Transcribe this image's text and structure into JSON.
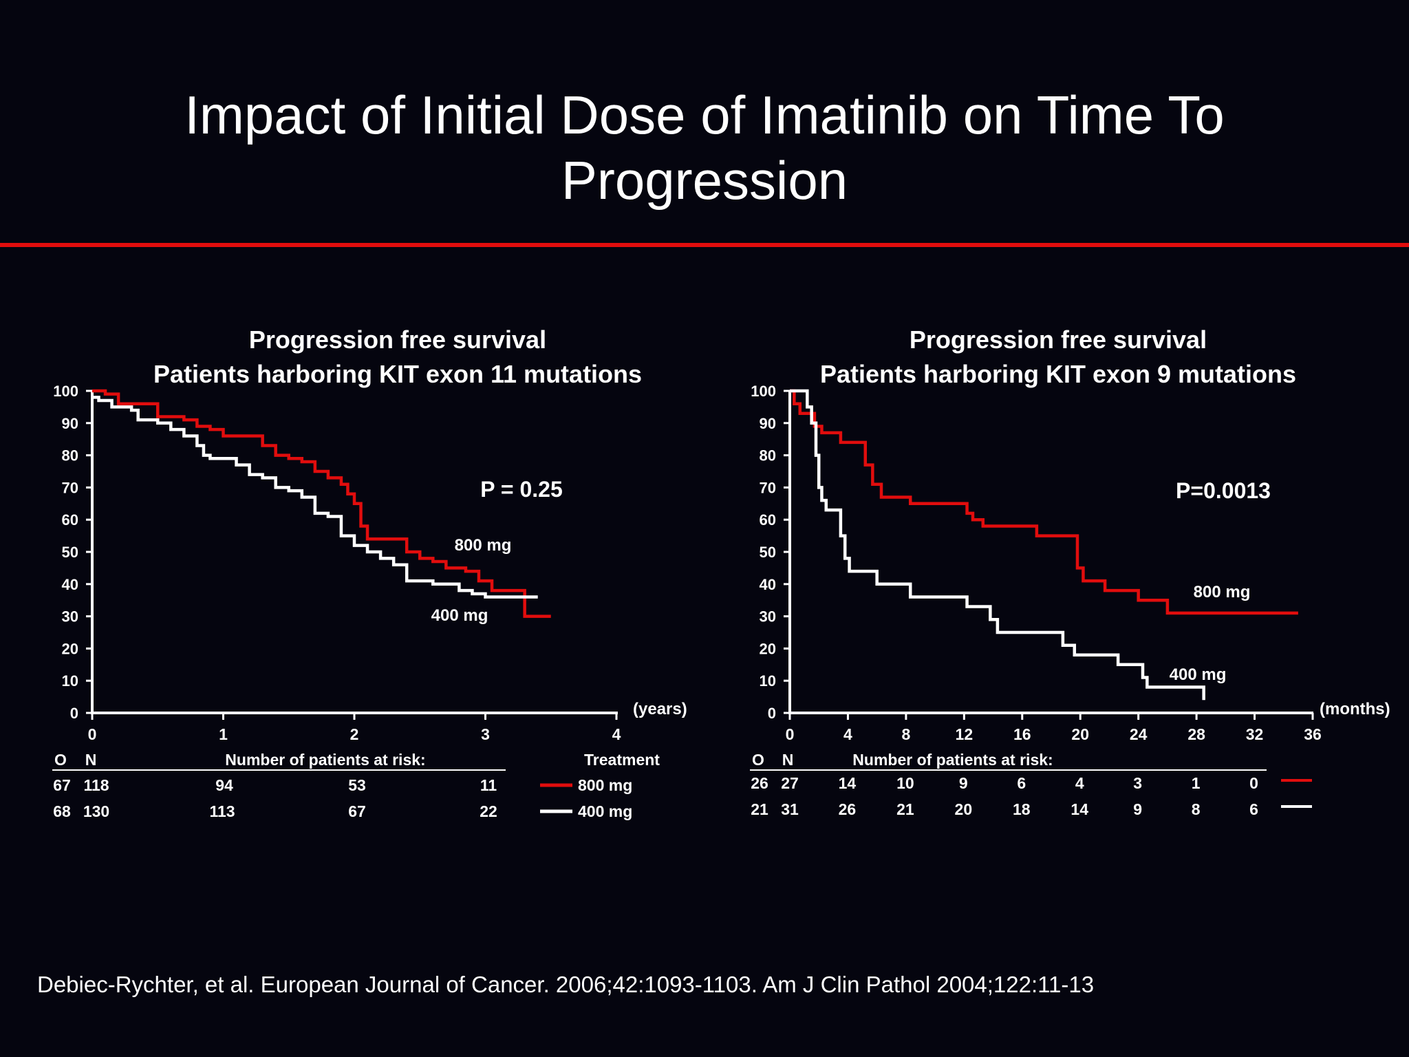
{
  "slide": {
    "title_line1": "Impact of Initial Dose of Imatinib on Time To",
    "title_line2": "Progression",
    "citation": "Debiec-Rychter, et al. European Journal of Cancer. 2006;42:1093-1103. Am J Clin Pathol 2004;122:11-13"
  },
  "colors": {
    "background": "#05050f",
    "accent": "#e10d0d",
    "series_800": "#e10d0d",
    "series_400": "#ffffff",
    "text": "#ffffff"
  },
  "chart_data": [
    {
      "type": "line",
      "subtype": "kaplan-meier step",
      "title": "Progression free survival",
      "subtitle": "Patients harboring KIT exon 11 mutations",
      "xunit": "(years)",
      "xlim": [
        0,
        4
      ],
      "xticks": [
        "0",
        "1",
        "2",
        "3",
        "4"
      ],
      "ylim": [
        0,
        100
      ],
      "yticks": [
        "0",
        "10",
        "20",
        "30",
        "40",
        "50",
        "60",
        "70",
        "80",
        "90",
        "100"
      ],
      "pvalue": "P = 0.25",
      "series": [
        {
          "name": "800 mg",
          "label": "800 mg",
          "color": "#e10d0d",
          "x": [
            0,
            0.1,
            0.2,
            0.45,
            0.5,
            0.7,
            0.8,
            0.9,
            1.0,
            1.2,
            1.3,
            1.4,
            1.5,
            1.6,
            1.7,
            1.8,
            1.9,
            1.95,
            2.0,
            2.05,
            2.1,
            2.3,
            2.4,
            2.5,
            2.6,
            2.7,
            2.85,
            2.95,
            3.05,
            3.3,
            3.5
          ],
          "y": [
            100,
            99,
            96,
            96,
            92,
            91,
            89,
            88,
            86,
            86,
            83,
            80,
            79,
            78,
            75,
            73,
            71,
            68,
            65,
            58,
            54,
            54,
            50,
            48,
            47,
            45,
            44,
            41,
            38,
            30,
            30
          ]
        },
        {
          "name": "400 mg",
          "label": "400 mg",
          "color": "#ffffff",
          "x": [
            0,
            0.05,
            0.15,
            0.3,
            0.35,
            0.5,
            0.6,
            0.7,
            0.8,
            0.85,
            0.9,
            1.0,
            1.1,
            1.2,
            1.3,
            1.4,
            1.5,
            1.6,
            1.7,
            1.8,
            1.9,
            2.0,
            2.1,
            2.2,
            2.3,
            2.4,
            2.6,
            2.8,
            2.9,
            3.0,
            3.4
          ],
          "y": [
            98,
            97,
            95,
            94,
            91,
            90,
            88,
            86,
            83,
            80,
            79,
            79,
            77,
            74,
            73,
            70,
            69,
            67,
            62,
            61,
            55,
            52,
            50,
            48,
            46,
            41,
            40,
            38,
            37,
            36,
            36
          ]
        }
      ],
      "risk_table": {
        "header_o": "O",
        "header_n": "N",
        "header_label": "Number of patients at risk:",
        "treatment_header": "Treatment",
        "rows": [
          {
            "o": "67",
            "n": "118",
            "values": [
              "94",
              "53",
              "11"
            ],
            "treatment": "800 mg"
          },
          {
            "o": "68",
            "n": "130",
            "values": [
              "113",
              "67",
              "22"
            ],
            "treatment": "400 mg"
          }
        ]
      }
    },
    {
      "type": "line",
      "subtype": "kaplan-meier step",
      "title": "Progression free survival",
      "subtitle": "Patients harboring KIT exon 9 mutations",
      "xunit": "(months)",
      "xlim": [
        0,
        36
      ],
      "xticks": [
        "0",
        "4",
        "8",
        "12",
        "16",
        "20",
        "24",
        "28",
        "32",
        "36"
      ],
      "ylim": [
        0,
        100
      ],
      "yticks": [
        "0",
        "10",
        "20",
        "30",
        "40",
        "50",
        "60",
        "70",
        "80",
        "90",
        "100"
      ],
      "pvalue": "P=0.0013",
      "series": [
        {
          "name": "800 mg",
          "label": "800 mg",
          "color": "#e10d0d",
          "x": [
            0,
            0.3,
            0.7,
            1.7,
            2.2,
            3.5,
            5.2,
            5.7,
            6.3,
            7.7,
            8.3,
            12.2,
            12.6,
            13.3,
            17.0,
            19.8,
            20.2,
            21.7,
            24.0,
            26.0,
            35.0
          ],
          "y": [
            100,
            96,
            93,
            89,
            87,
            84,
            77,
            71,
            67,
            67,
            65,
            62,
            60,
            58,
            55,
            45,
            41,
            38,
            35,
            31,
            31
          ]
        },
        {
          "name": "400 mg",
          "label": "400 mg",
          "color": "#ffffff",
          "x": [
            0,
            1.2,
            1.5,
            1.8,
            2.0,
            2.2,
            2.5,
            3.5,
            3.8,
            4.1,
            6.0,
            8.3,
            12.2,
            13.8,
            14.3,
            18.8,
            19.6,
            22.6,
            24.3,
            24.6,
            28.5
          ],
          "y": [
            100,
            95,
            90,
            80,
            70,
            66,
            63,
            55,
            48,
            44,
            40,
            36,
            33,
            29,
            25,
            21,
            18,
            15,
            11,
            8,
            4
          ]
        }
      ],
      "risk_table": {
        "header_o": "O",
        "header_n": "N",
        "header_label": "Number of patients at risk:",
        "rows": [
          {
            "o": "26",
            "n": "27",
            "values": [
              "14",
              "10",
              "9",
              "6",
              "4",
              "3",
              "1",
              "0"
            ]
          },
          {
            "o": "21",
            "n": "31",
            "values": [
              "26",
              "21",
              "20",
              "18",
              "14",
              "9",
              "8",
              "6"
            ]
          }
        ]
      }
    }
  ]
}
